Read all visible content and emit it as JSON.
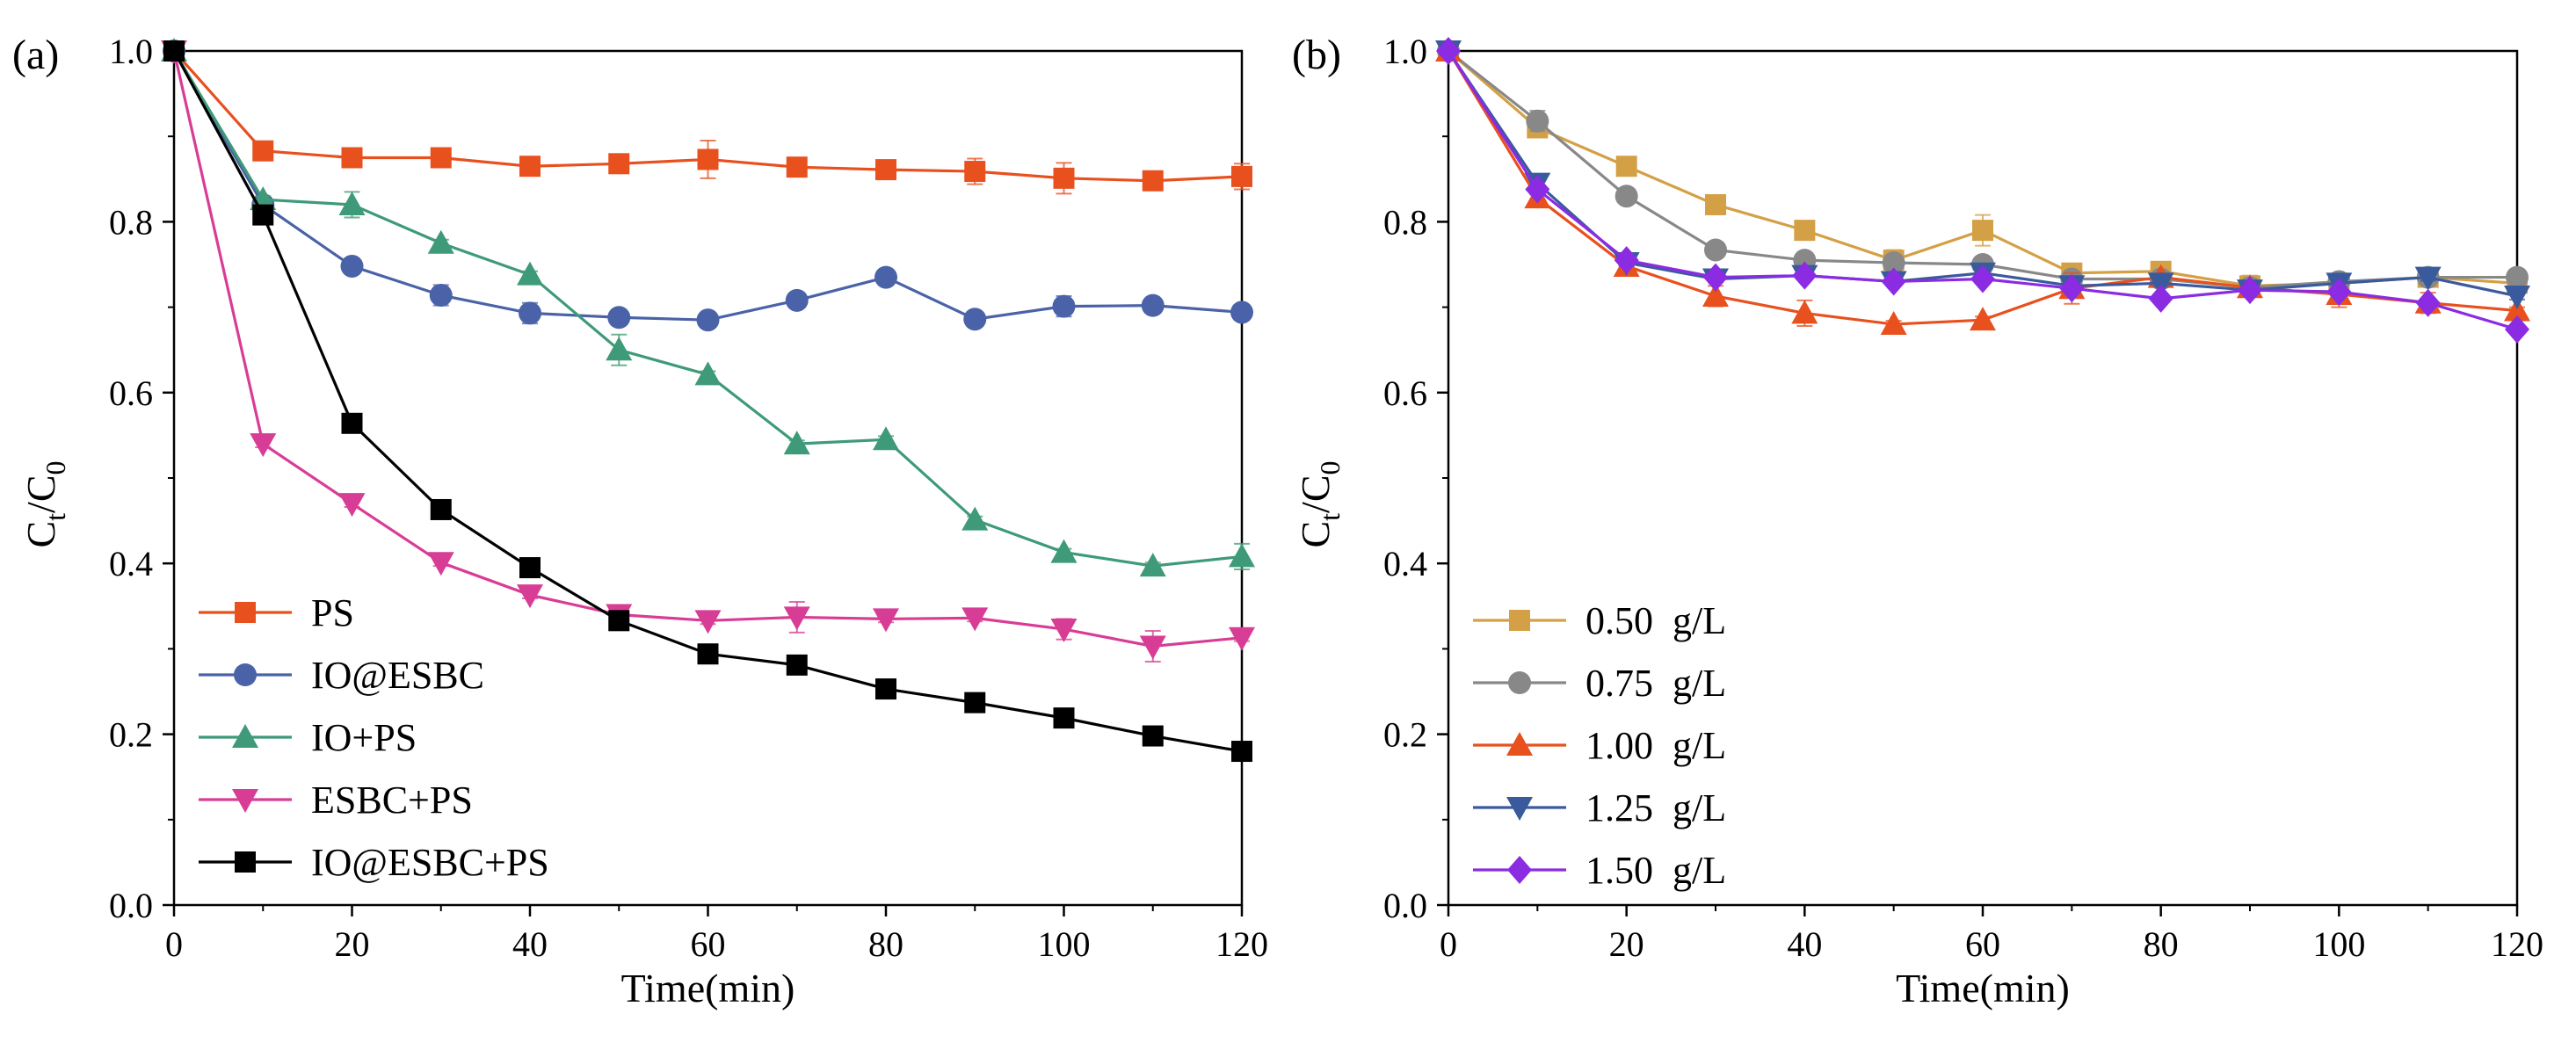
{
  "chart_data": [
    {
      "type": "line",
      "panel_label": "(a)",
      "title": "",
      "xlabel": "Time(min)",
      "ylabel": {
        "main": "C",
        "sub1": "t",
        "sep": "/C",
        "sub2": "0"
      },
      "xlim": [
        0,
        120
      ],
      "ylim": [
        0,
        1.0
      ],
      "xticks": [
        0,
        20,
        40,
        60,
        80,
        100,
        120
      ],
      "yticks": [
        "0.0",
        "0.2",
        "0.4",
        "0.6",
        "0.8",
        "1.0"
      ],
      "legend_position": "bottom-left",
      "x": [
        0,
        10,
        20,
        30,
        40,
        50,
        60,
        70,
        80,
        90,
        100,
        110,
        120
      ],
      "series": [
        {
          "name": "PS",
          "color": "#e8501e",
          "marker": "square",
          "values": [
            1.0,
            0.883,
            0.875,
            0.875,
            0.865,
            0.868,
            0.873,
            0.864,
            0.861,
            0.859,
            0.851,
            0.848,
            0.853
          ],
          "errors": [
            0,
            0.004,
            0.004,
            0.004,
            0.004,
            0.004,
            0.022,
            0.004,
            0.004,
            0.015,
            0.018,
            0.004,
            0.015
          ]
        },
        {
          "name": "IO@ESBC",
          "color": "#4a62a8",
          "marker": "circle",
          "values": [
            1.0,
            0.82,
            0.748,
            0.714,
            0.693,
            0.688,
            0.685,
            0.708,
            0.735,
            0.686,
            0.701,
            0.702,
            0.694
          ],
          "errors": [
            0,
            0.004,
            0.004,
            0.012,
            0.012,
            0.004,
            0.004,
            0.004,
            0.004,
            0.004,
            0.012,
            0.004,
            0.004
          ]
        },
        {
          "name": "IO+PS",
          "color": "#3e9a78",
          "marker": "triangle-up",
          "values": [
            1.0,
            0.826,
            0.82,
            0.775,
            0.738,
            0.65,
            0.621,
            0.54,
            0.545,
            0.451,
            0.413,
            0.397,
            0.408
          ],
          "errors": [
            0,
            0.004,
            0.015,
            0.004,
            0.004,
            0.018,
            0.004,
            0.004,
            0.004,
            0.004,
            0.004,
            0.004,
            0.015
          ]
        },
        {
          "name": "ESBC+PS",
          "color": "#d83d96",
          "marker": "triangle-down",
          "values": [
            1.0,
            0.54,
            0.47,
            0.401,
            0.363,
            0.34,
            0.333,
            0.337,
            0.335,
            0.336,
            0.323,
            0.303,
            0.313
          ],
          "errors": [
            0,
            0.004,
            0.004,
            0.004,
            0.004,
            0.004,
            0.004,
            0.018,
            0.004,
            0.004,
            0.012,
            0.018,
            0.004
          ]
        },
        {
          "name": "IO@ESBC+PS",
          "color": "#000000",
          "marker": "square",
          "values": [
            1.0,
            0.808,
            0.564,
            0.463,
            0.395,
            0.333,
            0.294,
            0.281,
            0.253,
            0.237,
            0.219,
            0.198,
            0.18
          ],
          "errors": [
            0,
            0,
            0,
            0,
            0,
            0,
            0,
            0,
            0,
            0,
            0,
            0,
            0
          ]
        }
      ]
    },
    {
      "type": "line",
      "panel_label": "(b)",
      "title": "",
      "xlabel": "Time(min)",
      "ylabel": {
        "main": "C",
        "sub1": "t",
        "sep": "/C",
        "sub2": "0"
      },
      "xlim": [
        0,
        120
      ],
      "ylim": [
        0,
        1.0
      ],
      "xticks": [
        0,
        20,
        40,
        60,
        80,
        100,
        120
      ],
      "yticks": [
        "0.0",
        "0.2",
        "0.4",
        "0.6",
        "0.8",
        "1.0"
      ],
      "legend_position": "bottom-left",
      "x": [
        0,
        10,
        20,
        30,
        40,
        50,
        60,
        70,
        80,
        90,
        100,
        110,
        120
      ],
      "series": [
        {
          "name": "0.50  g/L",
          "color": "#d4a046",
          "marker": "square",
          "values": [
            1.0,
            0.91,
            0.865,
            0.82,
            0.79,
            0.755,
            0.79,
            0.74,
            0.742,
            0.725,
            0.728,
            0.735,
            0.728
          ],
          "errors": [
            0,
            0.004,
            0.004,
            0.004,
            0.004,
            0.012,
            0.018,
            0.004,
            0.004,
            0.012,
            0.004,
            0.004,
            0.004
          ]
        },
        {
          "name": "0.75  g/L",
          "color": "#888888",
          "marker": "circle",
          "values": [
            1.0,
            0.918,
            0.83,
            0.767,
            0.755,
            0.752,
            0.75,
            0.733,
            0.733,
            0.723,
            0.73,
            0.735,
            0.735
          ],
          "errors": [
            0,
            0.012,
            0.004,
            0.004,
            0.004,
            0.004,
            0.004,
            0.004,
            0.004,
            0.004,
            0.004,
            0.004,
            0.004
          ]
        },
        {
          "name": "1.00  g/L",
          "color": "#e8501e",
          "marker": "triangle-up",
          "values": [
            1.0,
            0.828,
            0.748,
            0.713,
            0.693,
            0.68,
            0.685,
            0.722,
            0.735,
            0.723,
            0.715,
            0.705,
            0.696
          ],
          "errors": [
            0,
            0.004,
            0.004,
            0.012,
            0.015,
            0.004,
            0.004,
            0.018,
            0.004,
            0.004,
            0.015,
            0.012,
            0.004
          ]
        },
        {
          "name": "1.25  g/L",
          "color": "#3a5a9e",
          "marker": "triangle-down",
          "values": [
            1.0,
            0.845,
            0.752,
            0.733,
            0.737,
            0.73,
            0.74,
            0.725,
            0.728,
            0.72,
            0.728,
            0.735,
            0.713
          ],
          "errors": [
            0,
            0.004,
            0.004,
            0.004,
            0.004,
            0.004,
            0.004,
            0.004,
            0.004,
            0.004,
            0.004,
            0.004,
            0.004
          ]
        },
        {
          "name": "1.50  g/L",
          "color": "#8b2be2",
          "marker": "diamond",
          "values": [
            1.0,
            0.838,
            0.755,
            0.735,
            0.737,
            0.73,
            0.733,
            0.722,
            0.71,
            0.72,
            0.718,
            0.705,
            0.674
          ],
          "errors": [
            0,
            0,
            0,
            0,
            0,
            0,
            0,
            0,
            0,
            0,
            0,
            0,
            0
          ]
        }
      ]
    }
  ]
}
